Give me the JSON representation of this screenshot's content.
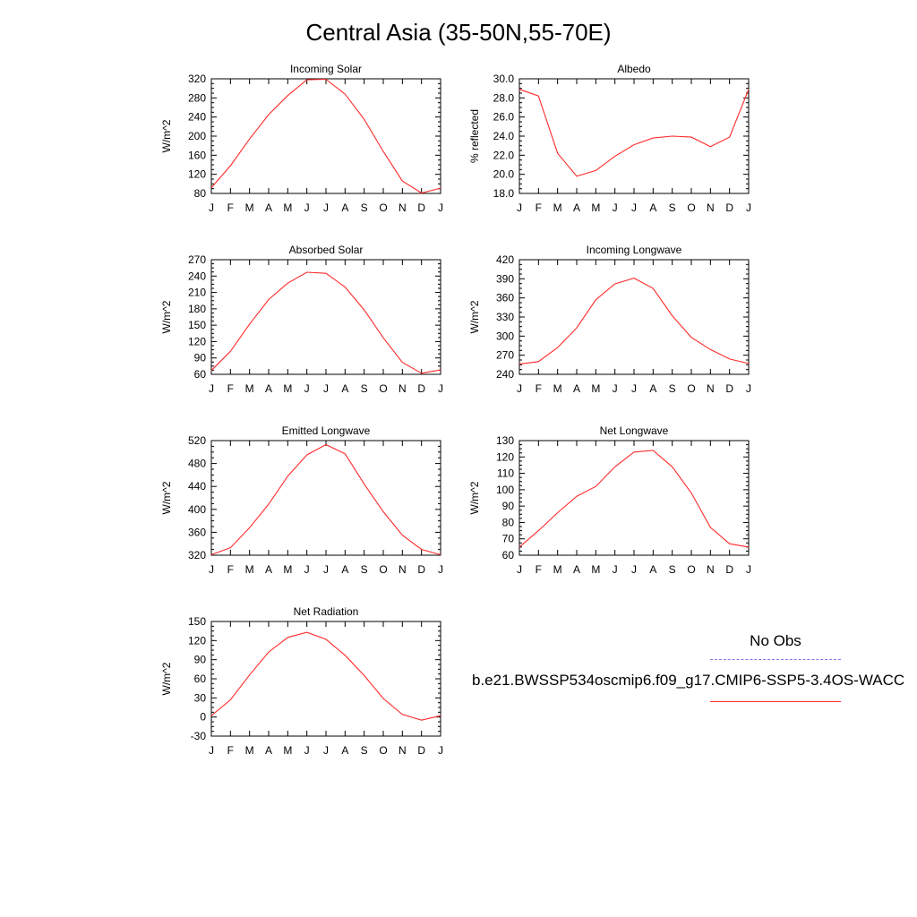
{
  "title": "Central Asia (35-50N,55-70E)",
  "legend": {
    "obs_label": "No Obs",
    "case_label": "b.e21.BWSSP534oscmip6.f09_g17.CMIP6-SSP5-3.4OS-WACC",
    "obs_color": "#7a7ae8",
    "case_color": "#ff2a2a"
  },
  "chart_data": [
    {
      "type": "line",
      "title": "Incoming Solar",
      "ylabel": "W/m^2",
      "x": [
        "J",
        "F",
        "M",
        "A",
        "M",
        "J",
        "J",
        "A",
        "S",
        "O",
        "N",
        "D",
        "J"
      ],
      "ylim": [
        80,
        320
      ],
      "yticks": [
        "80",
        "120",
        "160",
        "200",
        "240",
        "280",
        "320"
      ],
      "series": [
        {
          "color": "#ff2a2a",
          "values": [
            92,
            138,
            194,
            245,
            285,
            318,
            319,
            288,
            235,
            168,
            106,
            81,
            91
          ]
        }
      ]
    },
    {
      "type": "line",
      "title": "Albedo",
      "ylabel": "% reflected",
      "x": [
        "J",
        "F",
        "M",
        "A",
        "M",
        "J",
        "J",
        "A",
        "S",
        "O",
        "N",
        "D",
        "J"
      ],
      "ylim": [
        18.0,
        30.0
      ],
      "yticks": [
        "18.0",
        "20.0",
        "22.0",
        "24.0",
        "26.0",
        "28.0",
        "30.0"
      ],
      "series": [
        {
          "color": "#ff2a2a",
          "values": [
            28.9,
            28.2,
            22.2,
            19.8,
            20.4,
            21.9,
            23.1,
            23.8,
            24.0,
            23.9,
            22.9,
            23.9,
            28.9
          ]
        }
      ]
    },
    {
      "type": "line",
      "title": "Absorbed Solar",
      "ylabel": "W/m^2",
      "x": [
        "J",
        "F",
        "M",
        "A",
        "M",
        "J",
        "J",
        "A",
        "S",
        "O",
        "N",
        "D",
        "J"
      ],
      "ylim": [
        60,
        270
      ],
      "yticks": [
        "60",
        "90",
        "120",
        "150",
        "180",
        "210",
        "240",
        "270"
      ],
      "series": [
        {
          "color": "#ff2a2a",
          "values": [
            67,
            102,
            152,
            197,
            227,
            247,
            245,
            220,
            178,
            127,
            82,
            62,
            68
          ]
        }
      ]
    },
    {
      "type": "line",
      "title": "Incoming Longwave",
      "ylabel": "W/m^2",
      "x": [
        "J",
        "F",
        "M",
        "A",
        "M",
        "J",
        "J",
        "A",
        "S",
        "O",
        "N",
        "D",
        "J"
      ],
      "ylim": [
        240,
        420
      ],
      "yticks": [
        "240",
        "270",
        "300",
        "330",
        "360",
        "390",
        "420"
      ],
      "series": [
        {
          "color": "#ff2a2a",
          "values": [
            256,
            260,
            282,
            313,
            357,
            382,
            391,
            375,
            332,
            298,
            279,
            264,
            257
          ]
        }
      ]
    },
    {
      "type": "line",
      "title": "Emitted Longwave",
      "ylabel": "W/m^2",
      "x": [
        "J",
        "F",
        "M",
        "A",
        "M",
        "J",
        "J",
        "A",
        "S",
        "O",
        "N",
        "D",
        "J"
      ],
      "ylim": [
        320,
        520
      ],
      "yticks": [
        "320",
        "360",
        "400",
        "440",
        "480",
        "520"
      ],
      "series": [
        {
          "color": "#ff2a2a",
          "values": [
            321,
            333,
            368,
            409,
            458,
            495,
            513,
            497,
            444,
            396,
            355,
            330,
            321
          ]
        }
      ]
    },
    {
      "type": "line",
      "title": "Net Longwave",
      "ylabel": "W/m^2",
      "x": [
        "J",
        "F",
        "M",
        "A",
        "M",
        "J",
        "J",
        "A",
        "S",
        "O",
        "N",
        "D",
        "J"
      ],
      "ylim": [
        60,
        130
      ],
      "yticks": [
        "60",
        "70",
        "80",
        "90",
        "100",
        "110",
        "120",
        "130"
      ],
      "series": [
        {
          "color": "#ff2a2a",
          "values": [
            65,
            75,
            86,
            96,
            102,
            114,
            123,
            124,
            114,
            98,
            77,
            67,
            65
          ]
        }
      ]
    },
    {
      "type": "line",
      "title": "Net Radiation",
      "ylabel": "W/m^2",
      "x": [
        "J",
        "F",
        "M",
        "A",
        "M",
        "J",
        "J",
        "A",
        "S",
        "O",
        "N",
        "D",
        "J"
      ],
      "ylim": [
        -30,
        150
      ],
      "yticks": [
        "-30",
        "0",
        "30",
        "60",
        "90",
        "120",
        "150"
      ],
      "series": [
        {
          "color": "#ff2a2a",
          "values": [
            2,
            27,
            66,
            102,
            125,
            133,
            122,
            97,
            65,
            29,
            4,
            -5,
            2
          ]
        }
      ]
    }
  ]
}
